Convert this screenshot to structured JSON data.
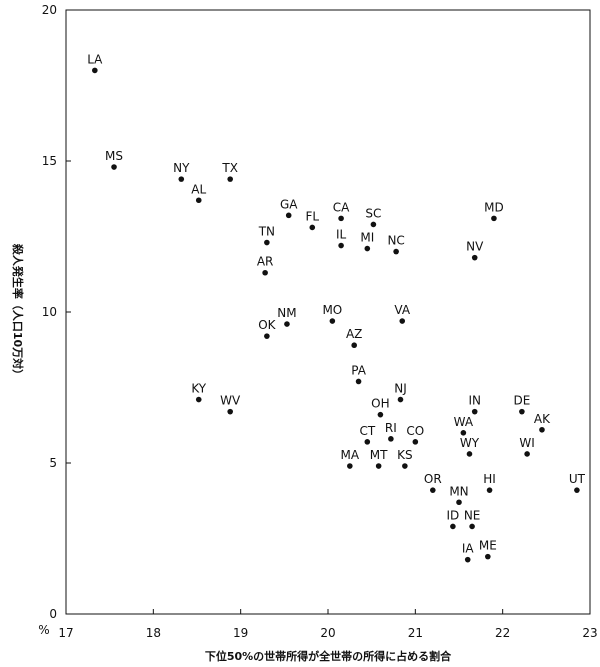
{
  "chart_data": {
    "type": "scatter",
    "title": "",
    "xlabel": "下位50%の世帯所得が全世帯の所得に占める割合",
    "ylabel": "殺人発生率（人口10万対）",
    "y_unit": "%",
    "xlim": [
      17,
      23
    ],
    "ylim": [
      0,
      20
    ],
    "x_ticks": [
      17,
      18,
      19,
      20,
      21,
      22,
      23
    ],
    "y_ticks": [
      0,
      5,
      10,
      15,
      20
    ],
    "grid": false,
    "legend": "none",
    "points": [
      {
        "label": "LA",
        "x": 17.33,
        "y": 18.0
      },
      {
        "label": "MS",
        "x": 17.55,
        "y": 14.8
      },
      {
        "label": "NY",
        "x": 18.32,
        "y": 14.4
      },
      {
        "label": "TX",
        "x": 18.88,
        "y": 14.4
      },
      {
        "label": "AL",
        "x": 18.52,
        "y": 13.7
      },
      {
        "label": "GA",
        "x": 19.55,
        "y": 13.2
      },
      {
        "label": "FL",
        "x": 19.82,
        "y": 12.8
      },
      {
        "label": "CA",
        "x": 20.15,
        "y": 13.1
      },
      {
        "label": "SC",
        "x": 20.52,
        "y": 12.9
      },
      {
        "label": "MD",
        "x": 21.9,
        "y": 13.1
      },
      {
        "label": "TN",
        "x": 19.3,
        "y": 12.3
      },
      {
        "label": "IL",
        "x": 20.15,
        "y": 12.2
      },
      {
        "label": "MI",
        "x": 20.45,
        "y": 12.1
      },
      {
        "label": "NC",
        "x": 20.78,
        "y": 12.0
      },
      {
        "label": "NV",
        "x": 21.68,
        "y": 11.8
      },
      {
        "label": "AR",
        "x": 19.28,
        "y": 11.3
      },
      {
        "label": "MO",
        "x": 20.05,
        "y": 9.7
      },
      {
        "label": "VA",
        "x": 20.85,
        "y": 9.7
      },
      {
        "label": "NM",
        "x": 19.53,
        "y": 9.6
      },
      {
        "label": "OK",
        "x": 19.3,
        "y": 9.2
      },
      {
        "label": "AZ",
        "x": 20.3,
        "y": 8.9
      },
      {
        "label": "PA",
        "x": 20.35,
        "y": 7.7
      },
      {
        "label": "NJ",
        "x": 20.83,
        "y": 7.1
      },
      {
        "label": "KY",
        "x": 18.52,
        "y": 7.1
      },
      {
        "label": "WV",
        "x": 18.88,
        "y": 6.7
      },
      {
        "label": "OH",
        "x": 20.6,
        "y": 6.6
      },
      {
        "label": "IN",
        "x": 21.68,
        "y": 6.7
      },
      {
        "label": "DE",
        "x": 22.22,
        "y": 6.7
      },
      {
        "label": "AK",
        "x": 22.45,
        "y": 6.1
      },
      {
        "label": "WA",
        "x": 21.55,
        "y": 6.0
      },
      {
        "label": "CT",
        "x": 20.45,
        "y": 5.7
      },
      {
        "label": "RI",
        "x": 20.72,
        "y": 5.8
      },
      {
        "label": "CO",
        "x": 21.0,
        "y": 5.7
      },
      {
        "label": "WY",
        "x": 21.62,
        "y": 5.3
      },
      {
        "label": "WI",
        "x": 22.28,
        "y": 5.3
      },
      {
        "label": "MA",
        "x": 20.25,
        "y": 4.9
      },
      {
        "label": "MT",
        "x": 20.58,
        "y": 4.9
      },
      {
        "label": "KS",
        "x": 20.88,
        "y": 4.9
      },
      {
        "label": "OR",
        "x": 21.2,
        "y": 4.1
      },
      {
        "label": "HI",
        "x": 21.85,
        "y": 4.1
      },
      {
        "label": "UT",
        "x": 22.85,
        "y": 4.1
      },
      {
        "label": "MN",
        "x": 21.5,
        "y": 3.7
      },
      {
        "label": "ID",
        "x": 21.43,
        "y": 2.9
      },
      {
        "label": "NE",
        "x": 21.65,
        "y": 2.9
      },
      {
        "label": "IA",
        "x": 21.6,
        "y": 1.8
      },
      {
        "label": "ME",
        "x": 21.83,
        "y": 1.9
      }
    ]
  }
}
